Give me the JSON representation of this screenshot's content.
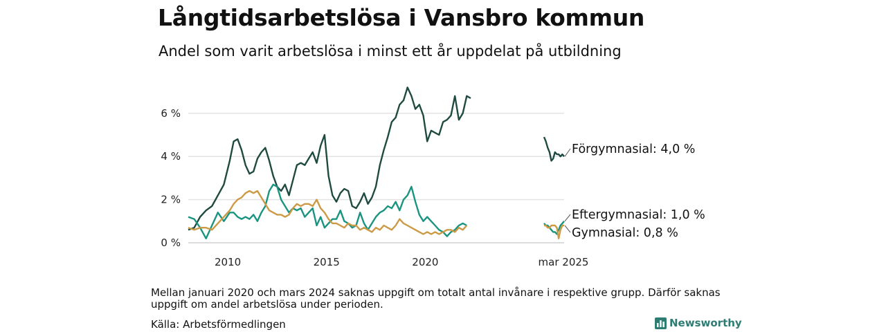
{
  "title": "Långtidsarbetslösa i Vansbro kommun",
  "subtitle": "Andel som varit arbetslösa i minst ett år uppdelat på utbildning",
  "note": "Mellan januari 2020 och mars 2024 saknas uppgift om totalt antal invånare i respektive grupp. Därför saknas uppgift om andel arbetslösa under perioden.",
  "source": "Källa: Arbetsförmedlingen",
  "brand": "Newsworthy",
  "chart_data": {
    "type": "line",
    "title": "Långtidsarbetslösa i Vansbro kommun",
    "subtitle": "Andel som varit arbetslösa i minst ett år uppdelat på utbildning",
    "ylim": [
      0,
      7.5
    ],
    "y_ticks": [
      {
        "value": 0,
        "label": "0 %"
      },
      {
        "value": 2,
        "label": "2 %"
      },
      {
        "value": 4,
        "label": "4 %"
      },
      {
        "value": 6,
        "label": "6 %"
      }
    ],
    "x_ticks": [
      {
        "value": 2010,
        "label": "2010"
      },
      {
        "value": 2015,
        "label": "2015"
      },
      {
        "value": 2020,
        "label": "2020"
      }
    ],
    "latest_label": "mar 2025",
    "grid": true,
    "series": [
      {
        "name": "Förgymnasial",
        "end_label": "Förgymnasial: 4,0 %",
        "color": "#1f4a40",
        "values": [
          [
            2008.0,
            0.6
          ],
          [
            2008.3,
            0.7
          ],
          [
            2008.6,
            1.2
          ],
          [
            2008.9,
            1.5
          ],
          [
            2009.2,
            1.7
          ],
          [
            2009.5,
            2.2
          ],
          [
            2009.8,
            2.7
          ],
          [
            2010.1,
            3.8
          ],
          [
            2010.3,
            4.7
          ],
          [
            2010.5,
            4.8
          ],
          [
            2010.7,
            4.3
          ],
          [
            2010.9,
            3.6
          ],
          [
            2011.1,
            3.2
          ],
          [
            2011.3,
            3.3
          ],
          [
            2011.5,
            3.9
          ],
          [
            2011.7,
            4.2
          ],
          [
            2011.9,
            4.4
          ],
          [
            2012.1,
            3.8
          ],
          [
            2012.3,
            3.1
          ],
          [
            2012.5,
            2.6
          ],
          [
            2012.7,
            2.4
          ],
          [
            2012.9,
            2.7
          ],
          [
            2013.1,
            2.2
          ],
          [
            2013.3,
            2.9
          ],
          [
            2013.5,
            3.6
          ],
          [
            2013.7,
            3.7
          ],
          [
            2013.9,
            3.6
          ],
          [
            2014.1,
            3.9
          ],
          [
            2014.3,
            4.2
          ],
          [
            2014.5,
            3.7
          ],
          [
            2014.7,
            4.5
          ],
          [
            2014.9,
            5.0
          ],
          [
            2015.1,
            3.1
          ],
          [
            2015.3,
            2.2
          ],
          [
            2015.5,
            1.9
          ],
          [
            2015.7,
            2.3
          ],
          [
            2015.9,
            2.5
          ],
          [
            2016.1,
            2.4
          ],
          [
            2016.3,
            1.7
          ],
          [
            2016.5,
            1.6
          ],
          [
            2016.7,
            1.9
          ],
          [
            2016.9,
            2.3
          ],
          [
            2017.1,
            1.8
          ],
          [
            2017.3,
            2.1
          ],
          [
            2017.5,
            2.6
          ],
          [
            2017.7,
            3.6
          ],
          [
            2017.9,
            4.3
          ],
          [
            2018.1,
            4.9
          ],
          [
            2018.3,
            5.6
          ],
          [
            2018.5,
            5.8
          ],
          [
            2018.7,
            6.4
          ],
          [
            2018.9,
            6.6
          ],
          [
            2019.1,
            7.2
          ],
          [
            2019.3,
            6.8
          ],
          [
            2019.5,
            6.2
          ],
          [
            2019.7,
            6.4
          ],
          [
            2019.9,
            5.9
          ],
          [
            2020.1,
            4.7
          ],
          [
            2020.3,
            5.2
          ],
          [
            2020.5,
            5.1
          ],
          [
            2020.7,
            5.0
          ],
          [
            2020.9,
            5.6
          ],
          [
            2021.1,
            5.7
          ],
          [
            2021.3,
            5.9
          ],
          [
            2021.5,
            6.8
          ],
          [
            2021.7,
            5.7
          ],
          [
            2021.9,
            6.0
          ],
          [
            2022.1,
            6.8
          ],
          [
            2022.3,
            6.7
          ]
        ]
      },
      {
        "name": "Eftergymnasial",
        "end_label": "Eftergymnasial: 1,0 %",
        "color": "#1a9480",
        "values": [
          [
            2008.0,
            1.2
          ],
          [
            2008.3,
            1.1
          ],
          [
            2008.6,
            0.7
          ],
          [
            2008.9,
            0.2
          ],
          [
            2009.2,
            0.8
          ],
          [
            2009.5,
            1.4
          ],
          [
            2009.8,
            1.0
          ],
          [
            2010.1,
            1.4
          ],
          [
            2010.3,
            1.4
          ],
          [
            2010.5,
            1.2
          ],
          [
            2010.7,
            1.1
          ],
          [
            2010.9,
            1.2
          ],
          [
            2011.1,
            1.1
          ],
          [
            2011.3,
            1.3
          ],
          [
            2011.5,
            1.0
          ],
          [
            2011.7,
            1.4
          ],
          [
            2011.9,
            1.7
          ],
          [
            2012.1,
            2.4
          ],
          [
            2012.3,
            2.7
          ],
          [
            2012.5,
            2.6
          ],
          [
            2012.7,
            2.0
          ],
          [
            2012.9,
            1.7
          ],
          [
            2013.1,
            1.4
          ],
          [
            2013.3,
            1.6
          ],
          [
            2013.5,
            1.5
          ],
          [
            2013.7,
            1.6
          ],
          [
            2013.9,
            1.2
          ],
          [
            2014.1,
            1.4
          ],
          [
            2014.3,
            1.6
          ],
          [
            2014.5,
            0.8
          ],
          [
            2014.7,
            1.2
          ],
          [
            2014.9,
            0.7
          ],
          [
            2015.1,
            0.9
          ],
          [
            2015.3,
            1.1
          ],
          [
            2015.5,
            1.1
          ],
          [
            2015.7,
            1.5
          ],
          [
            2015.9,
            1.0
          ],
          [
            2016.1,
            0.9
          ],
          [
            2016.3,
            0.7
          ],
          [
            2016.5,
            0.8
          ],
          [
            2016.7,
            1.4
          ],
          [
            2016.9,
            0.9
          ],
          [
            2017.1,
            0.6
          ],
          [
            2017.3,
            0.9
          ],
          [
            2017.5,
            1.2
          ],
          [
            2017.7,
            1.4
          ],
          [
            2017.9,
            1.5
          ],
          [
            2018.1,
            1.7
          ],
          [
            2018.3,
            1.6
          ],
          [
            2018.5,
            1.9
          ],
          [
            2018.7,
            1.5
          ],
          [
            2018.9,
            2.0
          ],
          [
            2019.1,
            2.2
          ],
          [
            2019.3,
            2.6
          ],
          [
            2019.5,
            1.9
          ],
          [
            2019.7,
            1.3
          ],
          [
            2019.9,
            1.0
          ],
          [
            2020.1,
            1.2
          ],
          [
            2020.3,
            1.0
          ],
          [
            2020.5,
            0.8
          ],
          [
            2020.7,
            0.6
          ],
          [
            2020.9,
            0.5
          ],
          [
            2021.1,
            0.3
          ],
          [
            2021.3,
            0.5
          ],
          [
            2021.5,
            0.6
          ],
          [
            2021.7,
            0.8
          ],
          [
            2021.9,
            0.9
          ],
          [
            2022.1,
            0.8
          ]
        ]
      },
      {
        "name": "Gymnasial",
        "end_label": "Gymnasial: 0,8 %",
        "color": "#cc9a45",
        "values": [
          [
            2008.0,
            0.7
          ],
          [
            2008.3,
            0.6
          ],
          [
            2008.6,
            0.7
          ],
          [
            2008.9,
            0.7
          ],
          [
            2009.2,
            0.6
          ],
          [
            2009.5,
            0.9
          ],
          [
            2009.8,
            1.2
          ],
          [
            2010.1,
            1.5
          ],
          [
            2010.3,
            1.8
          ],
          [
            2010.5,
            2.0
          ],
          [
            2010.7,
            2.1
          ],
          [
            2010.9,
            2.3
          ],
          [
            2011.1,
            2.4
          ],
          [
            2011.3,
            2.3
          ],
          [
            2011.5,
            2.4
          ],
          [
            2011.7,
            2.1
          ],
          [
            2011.9,
            1.8
          ],
          [
            2012.1,
            1.5
          ],
          [
            2012.3,
            1.4
          ],
          [
            2012.5,
            1.3
          ],
          [
            2012.7,
            1.3
          ],
          [
            2012.9,
            1.2
          ],
          [
            2013.1,
            1.3
          ],
          [
            2013.3,
            1.6
          ],
          [
            2013.5,
            1.8
          ],
          [
            2013.7,
            1.7
          ],
          [
            2013.9,
            1.8
          ],
          [
            2014.1,
            1.8
          ],
          [
            2014.3,
            1.7
          ],
          [
            2014.5,
            2.0
          ],
          [
            2014.7,
            1.6
          ],
          [
            2014.9,
            1.4
          ],
          [
            2015.1,
            1.1
          ],
          [
            2015.3,
            0.9
          ],
          [
            2015.5,
            0.9
          ],
          [
            2015.7,
            0.8
          ],
          [
            2015.9,
            0.7
          ],
          [
            2016.1,
            0.9
          ],
          [
            2016.3,
            0.8
          ],
          [
            2016.5,
            0.8
          ],
          [
            2016.7,
            0.6
          ],
          [
            2016.9,
            0.7
          ],
          [
            2017.1,
            0.6
          ],
          [
            2017.3,
            0.5
          ],
          [
            2017.5,
            0.7
          ],
          [
            2017.7,
            0.6
          ],
          [
            2017.9,
            0.8
          ],
          [
            2018.1,
            0.7
          ],
          [
            2018.3,
            0.6
          ],
          [
            2018.5,
            0.8
          ],
          [
            2018.7,
            1.1
          ],
          [
            2018.9,
            0.9
          ],
          [
            2019.1,
            0.8
          ],
          [
            2019.3,
            0.7
          ],
          [
            2019.5,
            0.6
          ],
          [
            2019.7,
            0.5
          ],
          [
            2019.9,
            0.4
          ],
          [
            2020.1,
            0.5
          ],
          [
            2020.3,
            0.4
          ],
          [
            2020.5,
            0.5
          ],
          [
            2020.7,
            0.4
          ],
          [
            2020.9,
            0.5
          ],
          [
            2021.1,
            0.6
          ],
          [
            2021.3,
            0.6
          ],
          [
            2021.5,
            0.5
          ],
          [
            2021.7,
            0.7
          ],
          [
            2021.9,
            0.6
          ],
          [
            2022.1,
            0.8
          ]
        ]
      }
    ],
    "recent": [
      {
        "name": "Förgymnasial",
        "values": [
          4.9,
          4.7,
          4.4,
          4.2,
          3.8,
          3.9,
          4.2,
          4.1,
          4.1,
          4.0,
          4.1,
          4.0
        ]
      },
      {
        "name": "Eftergymnasial",
        "values": [
          0.9,
          0.8,
          0.8,
          0.7,
          0.6,
          0.5,
          0.5,
          0.4,
          0.6,
          0.8,
          0.9,
          1.0
        ]
      },
      {
        "name": "Gymnasial",
        "values": [
          0.8,
          0.8,
          0.7,
          0.7,
          0.8,
          0.8,
          0.8,
          0.7,
          0.2,
          0.6,
          0.8,
          0.8
        ]
      }
    ]
  }
}
